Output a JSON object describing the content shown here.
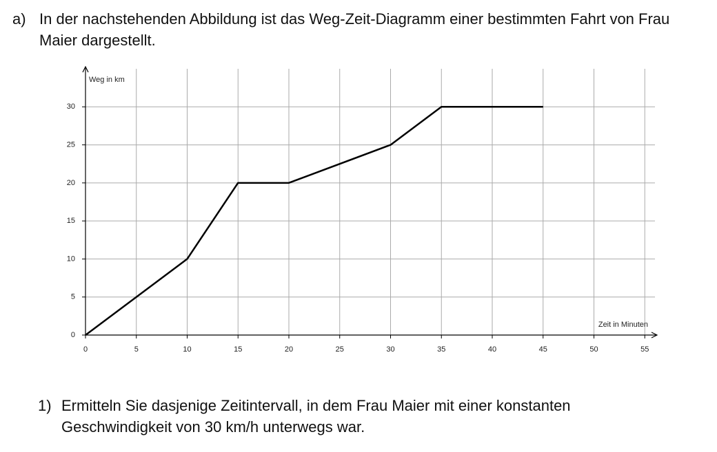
{
  "task": {
    "label": "a)",
    "text": "In der nachstehenden Abbildung ist das Weg-Zeit-Diagramm einer bestimmten Fahrt von Frau Maier dargestellt."
  },
  "chart_data": {
    "type": "line",
    "y_label": "Weg in km",
    "x_label": "Zeit in Minuten",
    "x": [
      0,
      10,
      15,
      20,
      30,
      35,
      45
    ],
    "values": [
      0,
      10,
      20,
      20,
      25,
      30,
      30
    ],
    "color": "#000000",
    "xlim": [
      0,
      56
    ],
    "ylim": [
      0,
      35
    ],
    "xticks": [
      0,
      5,
      10,
      15,
      20,
      25,
      30,
      35,
      40,
      45,
      50,
      55
    ],
    "yticks": [
      0,
      5,
      10,
      15,
      20,
      25,
      30
    ],
    "grid": true
  },
  "question": {
    "label": "1)",
    "text": "Ermitteln Sie dasjenige Zeitintervall, in dem Frau Maier mit einer konstanten Geschwindigkeit von 30 km/h unterwegs war."
  }
}
